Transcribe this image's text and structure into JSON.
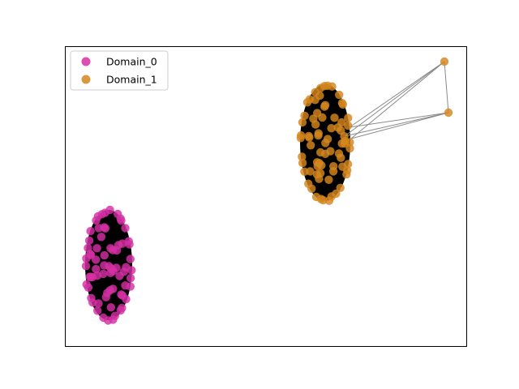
{
  "chart_data": {
    "type": "network",
    "grid": false,
    "axes_ticks": false,
    "legend_placement": "top-left",
    "legend": [
      {
        "label": "Domain_0",
        "color": "#d62fa3"
      },
      {
        "label": "Domain_1",
        "color": "#d4861f"
      }
    ],
    "edge_color": "#8a8a8a",
    "node_outline": "#000000",
    "clusters": [
      {
        "name": "Domain_0",
        "color": "#d62fa3",
        "shape": "dense-ellipse"
      },
      {
        "name": "Domain_1",
        "color": "#d4861f",
        "shape": "dense-ellipse"
      }
    ]
  }
}
